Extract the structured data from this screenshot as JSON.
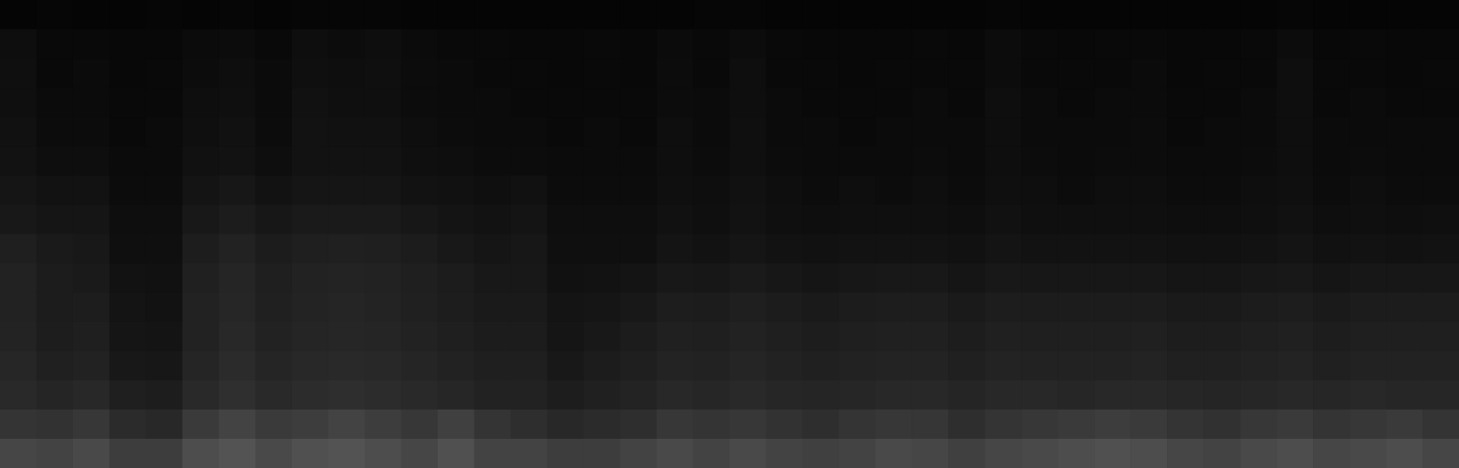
{
  "chart_data": {
    "type": "heatmap",
    "tick_labels": false,
    "cells": [
      [
        3,
        4,
        3,
        3,
        4,
        3,
        4,
        3,
        4,
        4,
        4,
        3,
        3,
        3,
        3,
        3,
        3,
        3,
        3,
        4,
        4,
        3,
        3,
        3,
        3,
        3,
        3,
        4,
        3,
        3,
        3,
        3,
        3,
        3,
        3,
        4,
        3,
        3,
        3,
        3
      ],
      [
        9,
        6,
        6,
        5,
        5,
        7,
        8,
        6,
        9,
        8,
        9,
        7,
        6,
        6,
        5,
        5,
        6,
        5,
        7,
        6,
        8,
        6,
        5,
        5,
        5,
        6,
        5,
        8,
        6,
        5,
        6,
        6,
        5,
        5,
        6,
        8,
        5,
        6,
        5,
        5
      ],
      [
        10,
        6,
        7,
        5,
        6,
        8,
        9,
        7,
        10,
        9,
        10,
        8,
        7,
        6,
        6,
        5,
        6,
        5,
        8,
        6,
        9,
        6,
        6,
        5,
        6,
        6,
        6,
        8,
        6,
        6,
        6,
        7,
        5,
        6,
        6,
        9,
        6,
        6,
        5,
        6
      ],
      [
        10,
        7,
        7,
        6,
        6,
        9,
        10,
        7,
        11,
        10,
        10,
        8,
        7,
        7,
        6,
        6,
        6,
        6,
        8,
        7,
        9,
        7,
        6,
        6,
        6,
        7,
        6,
        9,
        7,
        6,
        7,
        7,
        6,
        6,
        7,
        9,
        6,
        7,
        6,
        6
      ],
      [
        11,
        8,
        8,
        6,
        7,
        10,
        11,
        8,
        12,
        11,
        11,
        9,
        8,
        7,
        7,
        6,
        7,
        6,
        9,
        7,
        10,
        7,
        7,
        6,
        7,
        7,
        7,
        9,
        7,
        7,
        7,
        8,
        6,
        7,
        7,
        9,
        7,
        7,
        7,
        7
      ],
      [
        12,
        9,
        9,
        7,
        7,
        11,
        12,
        9,
        12,
        12,
        12,
        10,
        9,
        8,
        8,
        7,
        7,
        7,
        9,
        8,
        10,
        8,
        7,
        7,
        7,
        8,
        7,
        9,
        8,
        7,
        8,
        8,
        7,
        7,
        8,
        9,
        7,
        8,
        7,
        7
      ],
      [
        14,
        12,
        12,
        8,
        8,
        13,
        15,
        12,
        14,
        14,
        14,
        12,
        11,
        10,
        11,
        8,
        8,
        8,
        10,
        9,
        11,
        9,
        8,
        9,
        8,
        9,
        8,
        10,
        9,
        8,
        9,
        9,
        8,
        8,
        9,
        10,
        8,
        9,
        8,
        8
      ],
      [
        16,
        14,
        14,
        9,
        9,
        16,
        18,
        15,
        17,
        17,
        17,
        15,
        13,
        12,
        13,
        9,
        9,
        9,
        11,
        10,
        12,
        10,
        9,
        10,
        10,
        10,
        9,
        11,
        10,
        10,
        10,
        10,
        9,
        9,
        10,
        11,
        9,
        10,
        9,
        10
      ],
      [
        20,
        17,
        16,
        10,
        10,
        19,
        22,
        18,
        20,
        21,
        20,
        18,
        16,
        14,
        15,
        10,
        10,
        10,
        13,
        12,
        14,
        12,
        11,
        12,
        12,
        12,
        11,
        13,
        12,
        12,
        12,
        12,
        11,
        11,
        12,
        13,
        11,
        12,
        11,
        12
      ],
      [
        22,
        18,
        17,
        12,
        11,
        21,
        24,
        20,
        22,
        23,
        22,
        20,
        18,
        16,
        16,
        11,
        12,
        13,
        16,
        15,
        17,
        15,
        14,
        15,
        16,
        16,
        14,
        16,
        15,
        15,
        15,
        15,
        14,
        14,
        15,
        16,
        14,
        15,
        15,
        15
      ],
      [
        22,
        18,
        19,
        13,
        12,
        22,
        25,
        21,
        23,
        24,
        23,
        21,
        19,
        17,
        17,
        13,
        14,
        16,
        19,
        18,
        20,
        18,
        17,
        18,
        19,
        19,
        17,
        19,
        18,
        18,
        18,
        18,
        17,
        17,
        18,
        19,
        17,
        18,
        18,
        18
      ],
      [
        23,
        19,
        20,
        14,
        13,
        22,
        26,
        22,
        24,
        25,
        24,
        22,
        20,
        18,
        18,
        14,
        16,
        18,
        21,
        20,
        22,
        20,
        19,
        20,
        21,
        21,
        19,
        21,
        20,
        20,
        20,
        21,
        19,
        19,
        20,
        21,
        19,
        20,
        20,
        20
      ],
      [
        25,
        21,
        22,
        16,
        15,
        24,
        28,
        24,
        26,
        27,
        26,
        24,
        22,
        20,
        20,
        16,
        18,
        20,
        23,
        22,
        24,
        22,
        21,
        22,
        23,
        23,
        21,
        23,
        22,
        22,
        22,
        23,
        21,
        21,
        22,
        23,
        21,
        22,
        22,
        22
      ],
      [
        27,
        24,
        26,
        20,
        19,
        27,
        31,
        27,
        29,
        30,
        29,
        27,
        25,
        22,
        22,
        19,
        21,
        23,
        26,
        25,
        27,
        25,
        24,
        25,
        26,
        26,
        24,
        26,
        26,
        25,
        26,
        26,
        25,
        24,
        25,
        26,
        25,
        26,
        25,
        25
      ],
      [
        34,
        33,
        36,
        28,
        26,
        38,
        44,
        38,
        40,
        44,
        40,
        36,
        42,
        34,
        30,
        26,
        28,
        30,
        36,
        34,
        36,
        33,
        30,
        34,
        36,
        35,
        30,
        34,
        36,
        38,
        40,
        38,
        34,
        32,
        36,
        38,
        34,
        36,
        38,
        34
      ],
      [
        46,
        44,
        48,
        40,
        40,
        50,
        54,
        48,
        52,
        54,
        50,
        46,
        52,
        44,
        44,
        40,
        40,
        44,
        48,
        44,
        48,
        44,
        42,
        44,
        48,
        46,
        42,
        46,
        48,
        50,
        52,
        50,
        46,
        44,
        48,
        50,
        46,
        48,
        50,
        46
      ]
    ]
  }
}
